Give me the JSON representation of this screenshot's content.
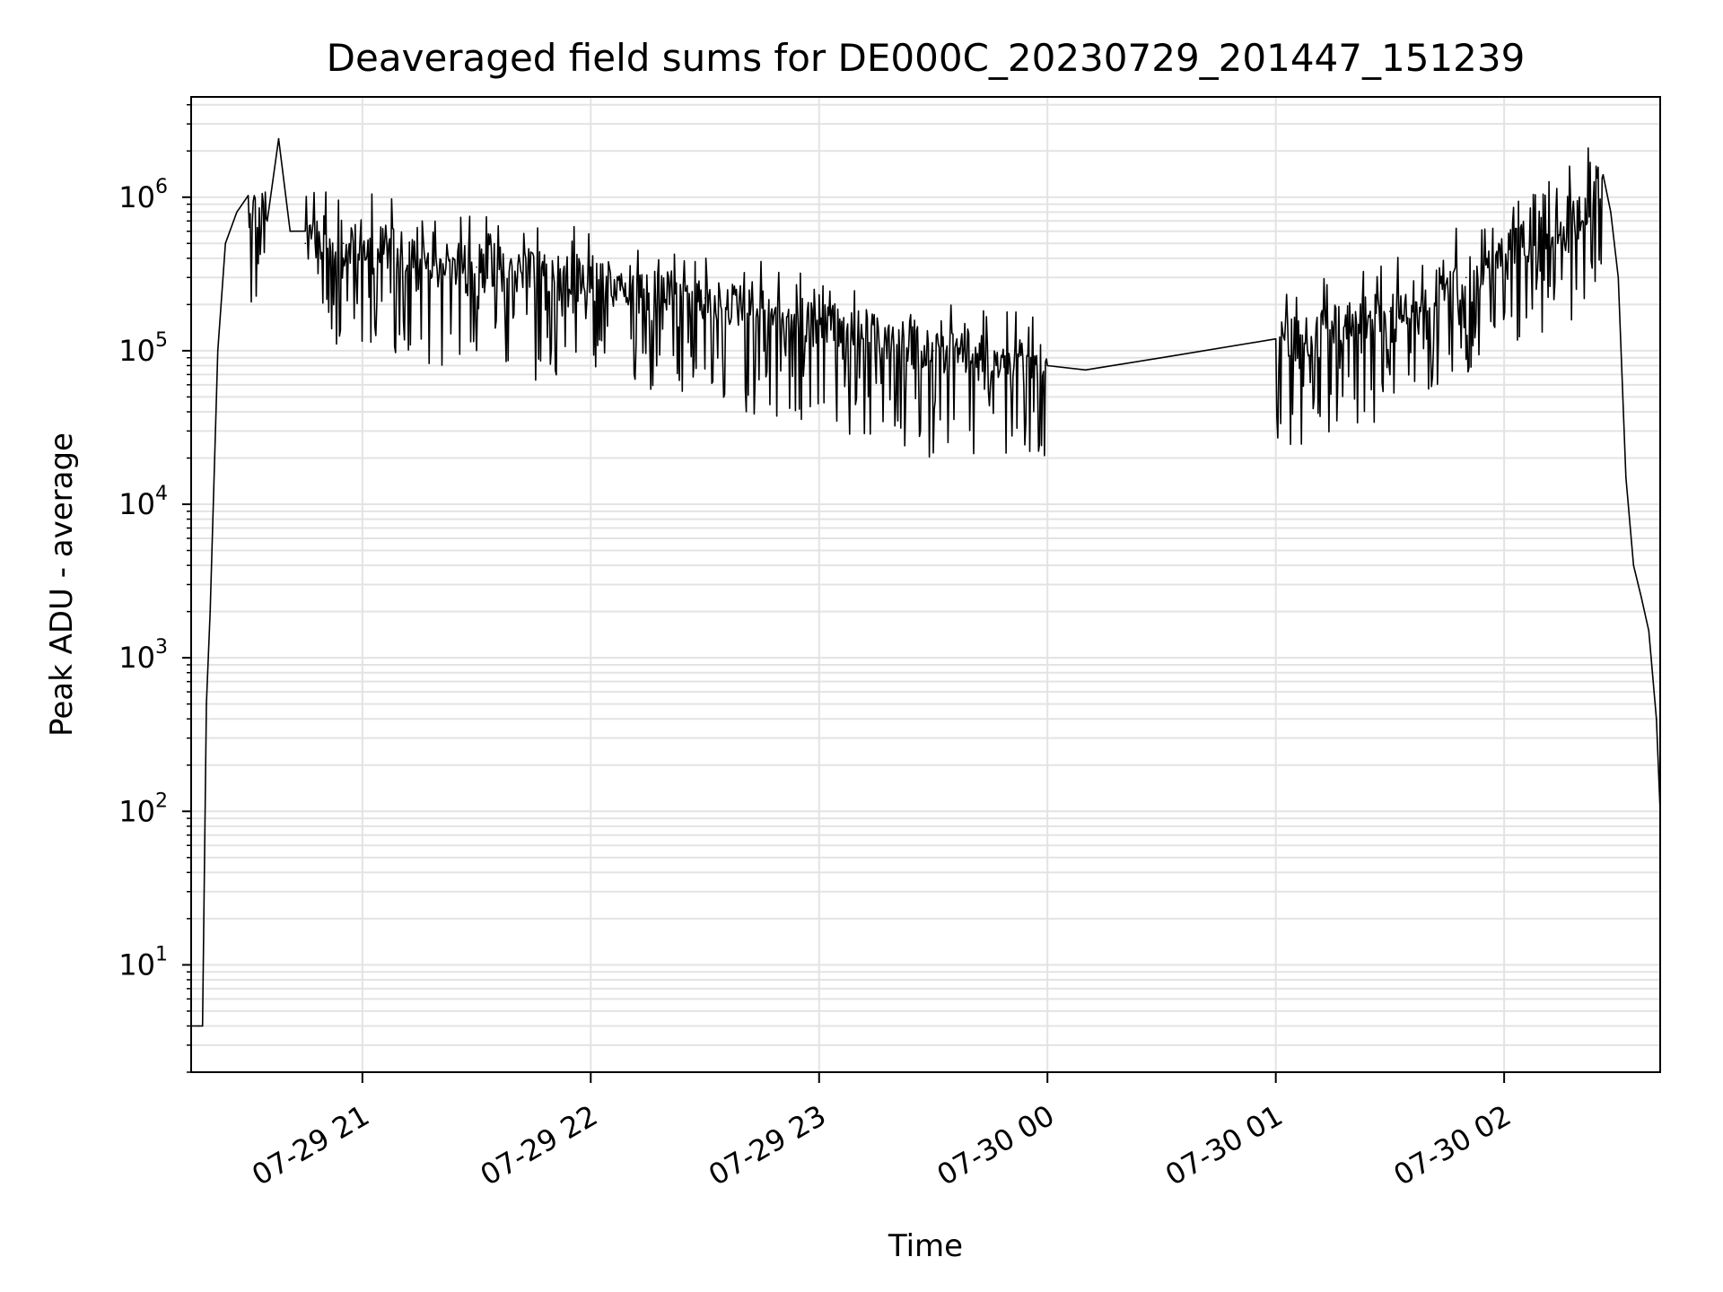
{
  "chart_data": {
    "type": "line",
    "title": "Deaveraged field sums for DE000C_20230729_201447_151239",
    "xlabel": "Time",
    "ylabel": "Peak ADU - average",
    "yscale": "log",
    "ylim": [
      2,
      4500000
    ],
    "xlim": [
      "07-29 20:15",
      "07-30 02:41"
    ],
    "grid": true,
    "line_color": "#000000",
    "x_ticks": [
      "07-29 21",
      "07-29 22",
      "07-29 23",
      "07-30 00",
      "07-30 01",
      "07-30 02"
    ],
    "y_ticks": [
      {
        "base": "10",
        "exp": "1"
      },
      {
        "base": "10",
        "exp": "2"
      },
      {
        "base": "10",
        "exp": "3"
      },
      {
        "base": "10",
        "exp": "4"
      },
      {
        "base": "10",
        "exp": "5"
      },
      {
        "base": "10",
        "exp": "6"
      }
    ],
    "series": [
      {
        "x": [
          "07-29 20:15",
          "07-29 20:17",
          "07-29 20:18",
          "07-29 20:19",
          "07-29 20:20",
          "07-29 20:22",
          "07-29 20:24",
          "07-29 20:27",
          "07-29 20:30",
          "07-29 20:35",
          "07-29 20:38",
          "07-29 20:41",
          "07-29 20:45",
          "07-29 20:55",
          "07-29 21:10",
          "07-29 21:30",
          "07-29 22:00",
          "07-29 22:30",
          "07-29 23:00",
          "07-29 23:30",
          "07-30 00:00",
          "07-30 00:10",
          "07-30 00:30",
          "07-30 01:00",
          "07-30 01:30",
          "07-30 01:50",
          "07-30 02:10",
          "07-30 02:20",
          "07-30 02:26",
          "07-30 02:28",
          "07-30 02:30",
          "07-30 02:32",
          "07-30 02:34",
          "07-30 02:36",
          "07-30 02:38",
          "07-30 02:40",
          "07-30 02:41"
        ],
        "y": [
          4,
          4,
          4,
          500,
          2000,
          100000,
          500000,
          800000,
          900000,
          700000,
          2400000,
          600000,
          500000,
          500000,
          450000,
          350000,
          280000,
          220000,
          150000,
          100000,
          80000,
          75000,
          90000,
          110000,
          180000,
          300000,
          600000,
          800000,
          1400000,
          800000,
          300000,
          15000,
          4000,
          2500,
          1500,
          400,
          100
        ]
      }
    ]
  }
}
